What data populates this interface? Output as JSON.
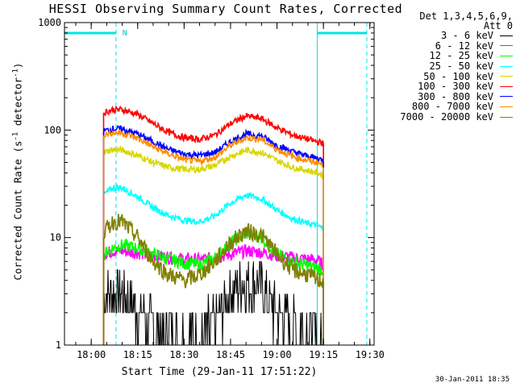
{
  "chart_data": {
    "type": "line",
    "title": "HESSI Observing Summary Count Rates, Corrected",
    "xlabel": "Start Time (29-Jan-11 17:51:22)",
    "ylabel": "Corrected Count Rate (s^-1 detector^-1)",
    "ylabel_parts": {
      "pre": "Corrected Count Rate (s",
      "sup1": "-1",
      "mid": " detector",
      "sup2": "-1",
      "post": ")"
    },
    "yscale": "log",
    "ylim": [
      1,
      1000
    ],
    "xlim": [
      "17:51:22",
      "19:31:22"
    ],
    "x_ticks": [
      "18:00",
      "18:15",
      "18:30",
      "18:45",
      "19:00",
      "19:15",
      "19:30"
    ],
    "y_ticks": [
      "1",
      "10",
      "100",
      "1000"
    ],
    "legend_header": [
      "Det 1,3,4,5,6,9,",
      "Att 0"
    ],
    "legend_position": "right",
    "stamp": "30-Jan-2011 18:35",
    "annotations": [
      {
        "text": "N",
        "at": "18:09"
      }
    ],
    "markers": {
      "night_bars": [
        [
          "17:51:22",
          "18:08"
        ],
        [
          "19:13",
          "19:29"
        ]
      ],
      "dashed_lines": [
        "18:08",
        "19:29"
      ],
      "solid_lines": [
        "17:51:22",
        "19:13"
      ]
    },
    "series": [
      {
        "name": "3 - 6 keV",
        "color": "#000000",
        "x": [
          "18:04",
          "18:07",
          "18:10",
          "18:15",
          "18:20",
          "18:25",
          "18:30",
          "18:35",
          "18:40",
          "18:45",
          "18:50",
          "18:55",
          "19:00",
          "19:05",
          "19:10",
          "19:13",
          "19:15"
        ],
        "values": [
          3,
          3,
          3,
          2,
          1.5,
          1.3,
          1.2,
          1.3,
          1.6,
          3,
          4,
          3.5,
          2,
          1.5,
          1.3,
          1.2,
          1
        ]
      },
      {
        "name": "6 - 12 keV",
        "color": "#ff00ff",
        "x": [
          "18:04",
          "18:07",
          "18:10",
          "18:15",
          "18:20",
          "18:25",
          "18:30",
          "18:35",
          "18:40",
          "18:45",
          "18:50",
          "18:55",
          "19:00",
          "19:05",
          "19:10",
          "19:13",
          "19:15"
        ],
        "values": [
          7,
          7.5,
          7.5,
          7.2,
          6.8,
          6.5,
          6.3,
          6.2,
          6.5,
          7,
          7.5,
          7.3,
          6.8,
          6.5,
          6.3,
          6.2,
          5.5
        ]
      },
      {
        "name": "12 - 25 keV",
        "color": "#00ff00",
        "x": [
          "18:04",
          "18:07",
          "18:10",
          "18:15",
          "18:20",
          "18:25",
          "18:30",
          "18:35",
          "18:40",
          "18:45",
          "18:50",
          "18:55",
          "19:00",
          "19:05",
          "19:10",
          "19:13",
          "19:15"
        ],
        "values": [
          7,
          8,
          8.5,
          8,
          7,
          6.3,
          5.8,
          5.6,
          6.5,
          9,
          11,
          10,
          7,
          6,
          5.5,
          5.2,
          5
        ]
      },
      {
        "name": "25 - 50 keV",
        "color": "#00ffff",
        "x": [
          "18:04",
          "18:07",
          "18:10",
          "18:15",
          "18:20",
          "18:25",
          "18:30",
          "18:35",
          "18:40",
          "18:45",
          "18:50",
          "18:55",
          "19:00",
          "19:05",
          "19:10",
          "19:13",
          "19:15"
        ],
        "values": [
          25,
          29,
          29,
          24,
          19,
          16,
          14.5,
          14,
          16,
          21,
          25,
          23,
          18,
          15,
          13.5,
          13,
          12
        ]
      },
      {
        "name": "50 - 100 keV",
        "color": "#d7d700",
        "x": [
          "18:04",
          "18:07",
          "18:10",
          "18:15",
          "18:20",
          "18:25",
          "18:30",
          "18:35",
          "18:40",
          "18:45",
          "18:50",
          "18:55",
          "19:00",
          "19:05",
          "19:10",
          "19:13",
          "19:15"
        ],
        "values": [
          62,
          66,
          65,
          58,
          50,
          45,
          43,
          43,
          47,
          57,
          65,
          62,
          52,
          45,
          42,
          40,
          38
        ]
      },
      {
        "name": "100 - 300 keV",
        "color": "#ff0000",
        "x": [
          "18:04",
          "18:07",
          "18:10",
          "18:15",
          "18:20",
          "18:25",
          "18:30",
          "18:35",
          "18:40",
          "18:45",
          "18:50",
          "18:55",
          "19:00",
          "19:05",
          "19:10",
          "19:13",
          "19:15"
        ],
        "values": [
          145,
          155,
          155,
          140,
          115,
          95,
          85,
          82,
          90,
          115,
          135,
          128,
          105,
          90,
          82,
          78,
          75
        ]
      },
      {
        "name": "300 - 800 keV",
        "color": "#0000ff",
        "x": [
          "18:04",
          "18:07",
          "18:10",
          "18:15",
          "18:20",
          "18:25",
          "18:30",
          "18:35",
          "18:40",
          "18:45",
          "18:50",
          "18:55",
          "19:00",
          "19:05",
          "19:10",
          "19:13",
          "19:15"
        ],
        "values": [
          98,
          103,
          102,
          92,
          78,
          66,
          60,
          58,
          62,
          78,
          92,
          88,
          72,
          63,
          57,
          55,
          52
        ]
      },
      {
        "name": "800 - 7000 keV",
        "color": "#ff8c00",
        "x": [
          "18:04",
          "18:07",
          "18:10",
          "18:15",
          "18:20",
          "18:25",
          "18:30",
          "18:35",
          "18:40",
          "18:45",
          "18:50",
          "18:55",
          "19:00",
          "19:05",
          "19:10",
          "19:13",
          "19:15"
        ],
        "values": [
          90,
          95,
          94,
          84,
          70,
          60,
          53,
          51,
          56,
          72,
          85,
          82,
          66,
          57,
          52,
          50,
          47
        ]
      },
      {
        "name": "7000 - 20000 keV",
        "color": "#808000",
        "x": [
          "18:04",
          "18:07",
          "18:10",
          "18:15",
          "18:20",
          "18:25",
          "18:30",
          "18:35",
          "18:40",
          "18:45",
          "18:50",
          "18:55",
          "19:00",
          "19:05",
          "19:10",
          "19:13",
          "19:15"
        ],
        "values": [
          11,
          14,
          14,
          10,
          6,
          4.5,
          4,
          4.5,
          6,
          9,
          11.5,
          10.5,
          7,
          5,
          4.5,
          4,
          4
        ]
      }
    ]
  }
}
